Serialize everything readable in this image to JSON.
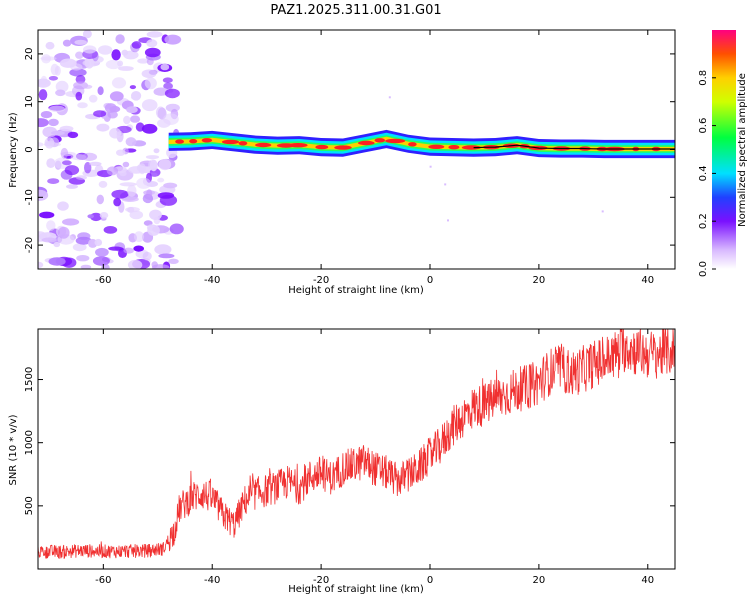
{
  "chart_data": [
    {
      "type": "heatmap",
      "title": "PAZ1.2025.311.00.31.G01",
      "xlabel": "Height of straight line (km)",
      "ylabel": "Frequency (Hz)",
      "xlim": [
        -72,
        45
      ],
      "ylim": [
        -25,
        25
      ],
      "xticks": [
        -60,
        -40,
        -20,
        0,
        20,
        40
      ],
      "yticks": [
        -20,
        -10,
        0,
        10,
        20
      ],
      "noise_region_x": [
        -72,
        -48
      ],
      "ridge": {
        "x": [
          -48,
          -44,
          -40,
          -36,
          -32,
          -28,
          -24,
          -20,
          -16,
          -12,
          -8,
          -4,
          0,
          4,
          8,
          12,
          16,
          20,
          24,
          28,
          32,
          36,
          40,
          45
        ],
        "frequency_hz": [
          1.6,
          1.7,
          2.0,
          1.5,
          1.0,
          0.8,
          0.9,
          0.5,
          0.4,
          1.3,
          2.2,
          1.2,
          0.6,
          0.5,
          0.4,
          0.5,
          0.9,
          0.3,
          0.2,
          0.2,
          0.1,
          0.1,
          0.1,
          0.1
        ]
      },
      "colorbar": {
        "label": "Normalized spectral amplitude",
        "ticks": [
          "0.0",
          "0.2",
          "0.4",
          "0.6",
          "0.8"
        ],
        "range": [
          0,
          1
        ]
      }
    },
    {
      "type": "line",
      "title": "",
      "xlabel": "Height of straight line (km)",
      "ylabel": "SNR (10 * v/v)",
      "xlim": [
        -72,
        45
      ],
      "ylim": [
        0,
        1900
      ],
      "xticks": [
        -60,
        -40,
        -20,
        0,
        20,
        40
      ],
      "yticks": [
        500,
        1000,
        1500
      ],
      "series": [
        {
          "name": "SNR",
          "color": "#f03030",
          "x": [
            -72,
            -68,
            -64,
            -60,
            -56,
            -52,
            -49,
            -47,
            -46,
            -44,
            -42,
            -40,
            -38,
            -36,
            -34,
            -32,
            -30,
            -28,
            -26,
            -24,
            -22,
            -20,
            -18,
            -16,
            -14,
            -12,
            -10,
            -8,
            -6,
            -4,
            -2,
            0,
            2,
            4,
            6,
            8,
            10,
            12,
            14,
            16,
            18,
            20,
            22,
            24,
            26,
            28,
            30,
            32,
            34,
            36,
            38,
            40,
            42,
            45
          ],
          "y": [
            140,
            135,
            145,
            140,
            140,
            145,
            160,
            300,
            480,
            560,
            600,
            560,
            430,
            350,
            540,
            600,
            620,
            650,
            690,
            640,
            730,
            760,
            720,
            800,
            820,
            850,
            790,
            760,
            700,
            740,
            800,
            900,
            980,
            1120,
            1200,
            1280,
            1300,
            1350,
            1380,
            1420,
            1440,
            1480,
            1560,
            1600,
            1540,
            1580,
            1620,
            1650,
            1700,
            1760,
            1720,
            1700,
            1700,
            1740
          ]
        }
      ]
    }
  ]
}
